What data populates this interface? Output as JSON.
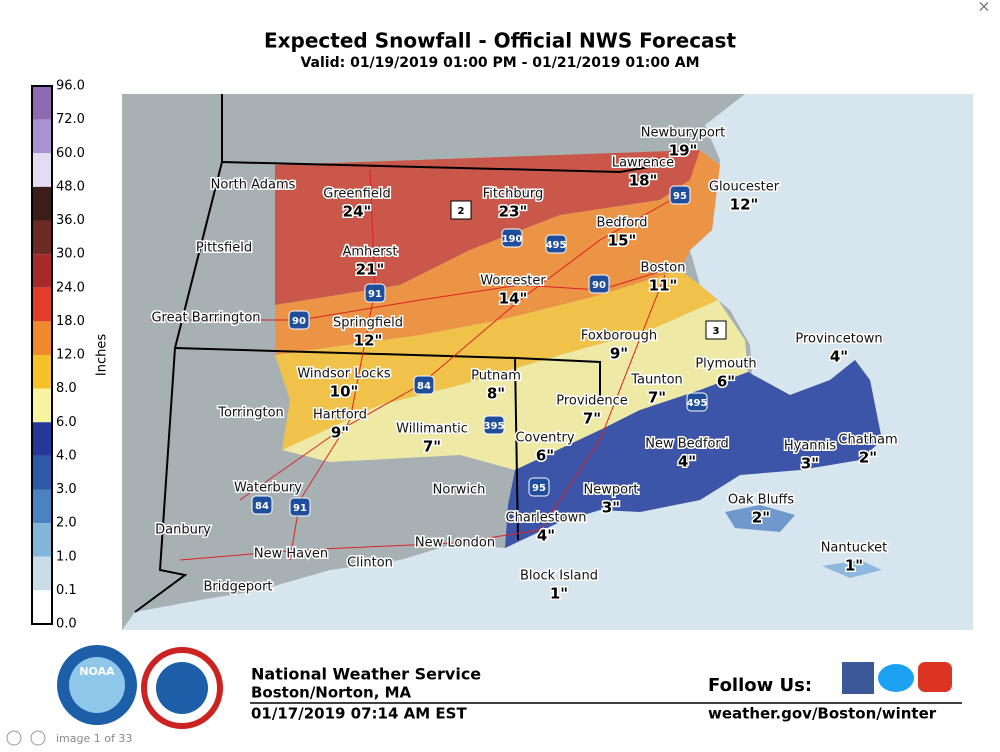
{
  "header": {
    "title": "Expected Snowfall - Official NWS Forecast",
    "subtitle": "Valid: 01/19/2019 01:00 PM - 01/21/2019 01:00 AM"
  },
  "legend": {
    "title": "Inches",
    "labels": [
      "96.0",
      "72.0",
      "60.0",
      "48.0",
      "36.0",
      "30.0",
      "24.0",
      "18.0",
      "12.0",
      "8.0",
      "6.0",
      "4.0",
      "3.0",
      "2.0",
      "1.0",
      "0.1",
      "0.0"
    ],
    "colors": [
      "#8e6bb0",
      "#a892d2",
      "#e4dcf2",
      "#3b1e1a",
      "#6e2a24",
      "#a52a28",
      "#e23c2a",
      "#f08a2c",
      "#f5c22a",
      "#f8f4a0",
      "#26389a",
      "#2f5aa8",
      "#4b82c0",
      "#84b6da",
      "#c9dde8",
      "#ffffff"
    ]
  },
  "cities": [
    {
      "name": "North Adams"
    },
    {
      "name": "Greenfield",
      "amount": "24\""
    },
    {
      "name": "Fitchburg",
      "amount": "23\""
    },
    {
      "name": "Newburyport",
      "amount": "19\""
    },
    {
      "name": "Lawrence",
      "amount": "18\""
    },
    {
      "name": "Gloucester",
      "amount": "12\""
    },
    {
      "name": "Pittsfield"
    },
    {
      "name": "Amherst",
      "amount": "21\""
    },
    {
      "name": "Bedford",
      "amount": "15\""
    },
    {
      "name": "Worcester",
      "amount": "14\""
    },
    {
      "name": "Boston",
      "amount": "11\""
    },
    {
      "name": "Great Barrington"
    },
    {
      "name": "Springfield",
      "amount": "12\""
    },
    {
      "name": "Foxborough",
      "amount": "9\""
    },
    {
      "name": "Provincetown",
      "amount": "4\""
    },
    {
      "name": "Windsor Locks",
      "amount": "10\""
    },
    {
      "name": "Putnam",
      "amount": "8\""
    },
    {
      "name": "Plymouth",
      "amount": "6\""
    },
    {
      "name": "Taunton",
      "amount": "7\""
    },
    {
      "name": "Torrington"
    },
    {
      "name": "Hartford",
      "amount": "9\""
    },
    {
      "name": "Providence",
      "amount": "7\""
    },
    {
      "name": "Willimantic",
      "amount": "7\""
    },
    {
      "name": "Coventry",
      "amount": "6\""
    },
    {
      "name": "New Bedford",
      "amount": "4\""
    },
    {
      "name": "Hyannis",
      "amount": "3\""
    },
    {
      "name": "Chatham",
      "amount": "2\""
    },
    {
      "name": "Waterbury"
    },
    {
      "name": "Norwich"
    },
    {
      "name": "Newport",
      "amount": "3\""
    },
    {
      "name": "Oak Bluffs",
      "amount": "2\""
    },
    {
      "name": "Danbury"
    },
    {
      "name": "Charlestown",
      "amount": "4\""
    },
    {
      "name": "Nantucket",
      "amount": "1\""
    },
    {
      "name": "New Haven"
    },
    {
      "name": "New London"
    },
    {
      "name": "Clinton"
    },
    {
      "name": "Bridgeport"
    },
    {
      "name": "Block Island",
      "amount": "1\""
    }
  ],
  "highways": [
    "2",
    "3",
    "95",
    "190",
    "495",
    "91",
    "90",
    "90",
    "84",
    "395",
    "495",
    "95",
    "84",
    "91"
  ],
  "footer": {
    "logo": "NOAA",
    "org": "National Weather Service",
    "office": "Boston/Norton, MA",
    "issued": "01/17/2019 07:14 AM EST",
    "follow": "Follow Us:",
    "url": "weather.gov/Boston/winter"
  },
  "viewer": {
    "counter": "image 1 of 33",
    "close": "×"
  }
}
